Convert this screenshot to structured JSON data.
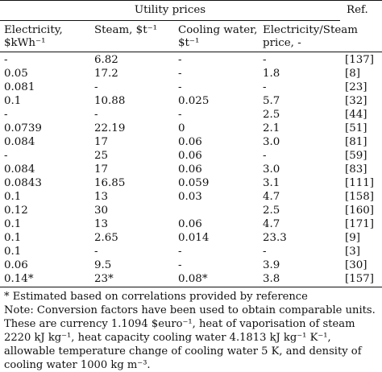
{
  "table": {
    "group_title": "Utility prices",
    "ref_header": "Ref.",
    "columns": [
      {
        "line1": "Electricity,",
        "line2": "$kWh⁻¹"
      },
      {
        "line1": "Steam, $t⁻¹",
        "line2": ""
      },
      {
        "line1": "Cooling water,",
        "line2": "$t⁻¹"
      },
      {
        "line1": "Electricity/Steam",
        "line2": "price, -"
      }
    ],
    "rows": [
      {
        "c0": "-",
        "c1": "6.82",
        "c2": "-",
        "c3": "-",
        "ref": "[137]"
      },
      {
        "c0": "0.05",
        "c1": "17.2",
        "c2": "-",
        "c3": "1.8",
        "ref": "[8]"
      },
      {
        "c0": "0.081",
        "c1": "-",
        "c2": "-",
        "c3": "-",
        "ref": "[23]"
      },
      {
        "c0": "0.1",
        "c1": "10.88",
        "c2": "0.025",
        "c3": "5.7",
        "ref": "[32]"
      },
      {
        "c0": "-",
        "c1": "-",
        "c2": "-",
        "c3": "2.5",
        "ref": "[44]"
      },
      {
        "c0": "0.0739",
        "c1": "22.19",
        "c2": "0",
        "c3": "2.1",
        "ref": "[51]"
      },
      {
        "c0": "0.084",
        "c1": "17",
        "c2": "0.06",
        "c3": "3.0",
        "ref": "[81]"
      },
      {
        "c0": "-",
        "c1": "25",
        "c2": "0.06",
        "c3": "-",
        "ref": "[59]"
      },
      {
        "c0": "0.084",
        "c1": "17",
        "c2": "0.06",
        "c3": "3.0",
        "ref": "[83]"
      },
      {
        "c0": "0.0843",
        "c1": "16.85",
        "c2": "0.059",
        "c3": "3.1",
        "ref": "[111]"
      },
      {
        "c0": "0.1",
        "c1": "13",
        "c2": "0.03",
        "c3": "4.7",
        "ref": "[158]"
      },
      {
        "c0": "0.12",
        "c1": "30",
        "c2": "",
        "c3": "2.5",
        "ref": "[160]"
      },
      {
        "c0": "0.1",
        "c1": "13",
        "c2": "0.06",
        "c3": "4.7",
        "ref": "[171]"
      },
      {
        "c0": "0.1",
        "c1": "2.65",
        "c2": "0.014",
        "c3": "23.3",
        "ref": "[9]"
      },
      {
        "c0": "0.1",
        "c1": "-",
        "c2": "-",
        "c3": "-",
        "ref": "[3]"
      },
      {
        "c0": "0.06",
        "c1": "9.5",
        "c2": "-",
        "c3": "3.9",
        "ref": "[30]"
      },
      {
        "c0": "0.14*",
        "c1": "23*",
        "c2": "0.08*",
        "c3": "3.8",
        "ref": "[157]"
      }
    ]
  },
  "notes": {
    "estimated": "* Estimated based on correlations provided by reference",
    "conversion": "Note: Conversion factors have been used to obtain comparable units. These are currency 1.1094 $euro⁻¹, heat of vaporisation of steam 2220 kJ kg⁻¹, heat capacity cooling water 4.1813 kJ kg⁻¹ K⁻¹, allowable temperature change of cooling water 5 K, and density of cooling water 1000 kg m⁻³."
  }
}
